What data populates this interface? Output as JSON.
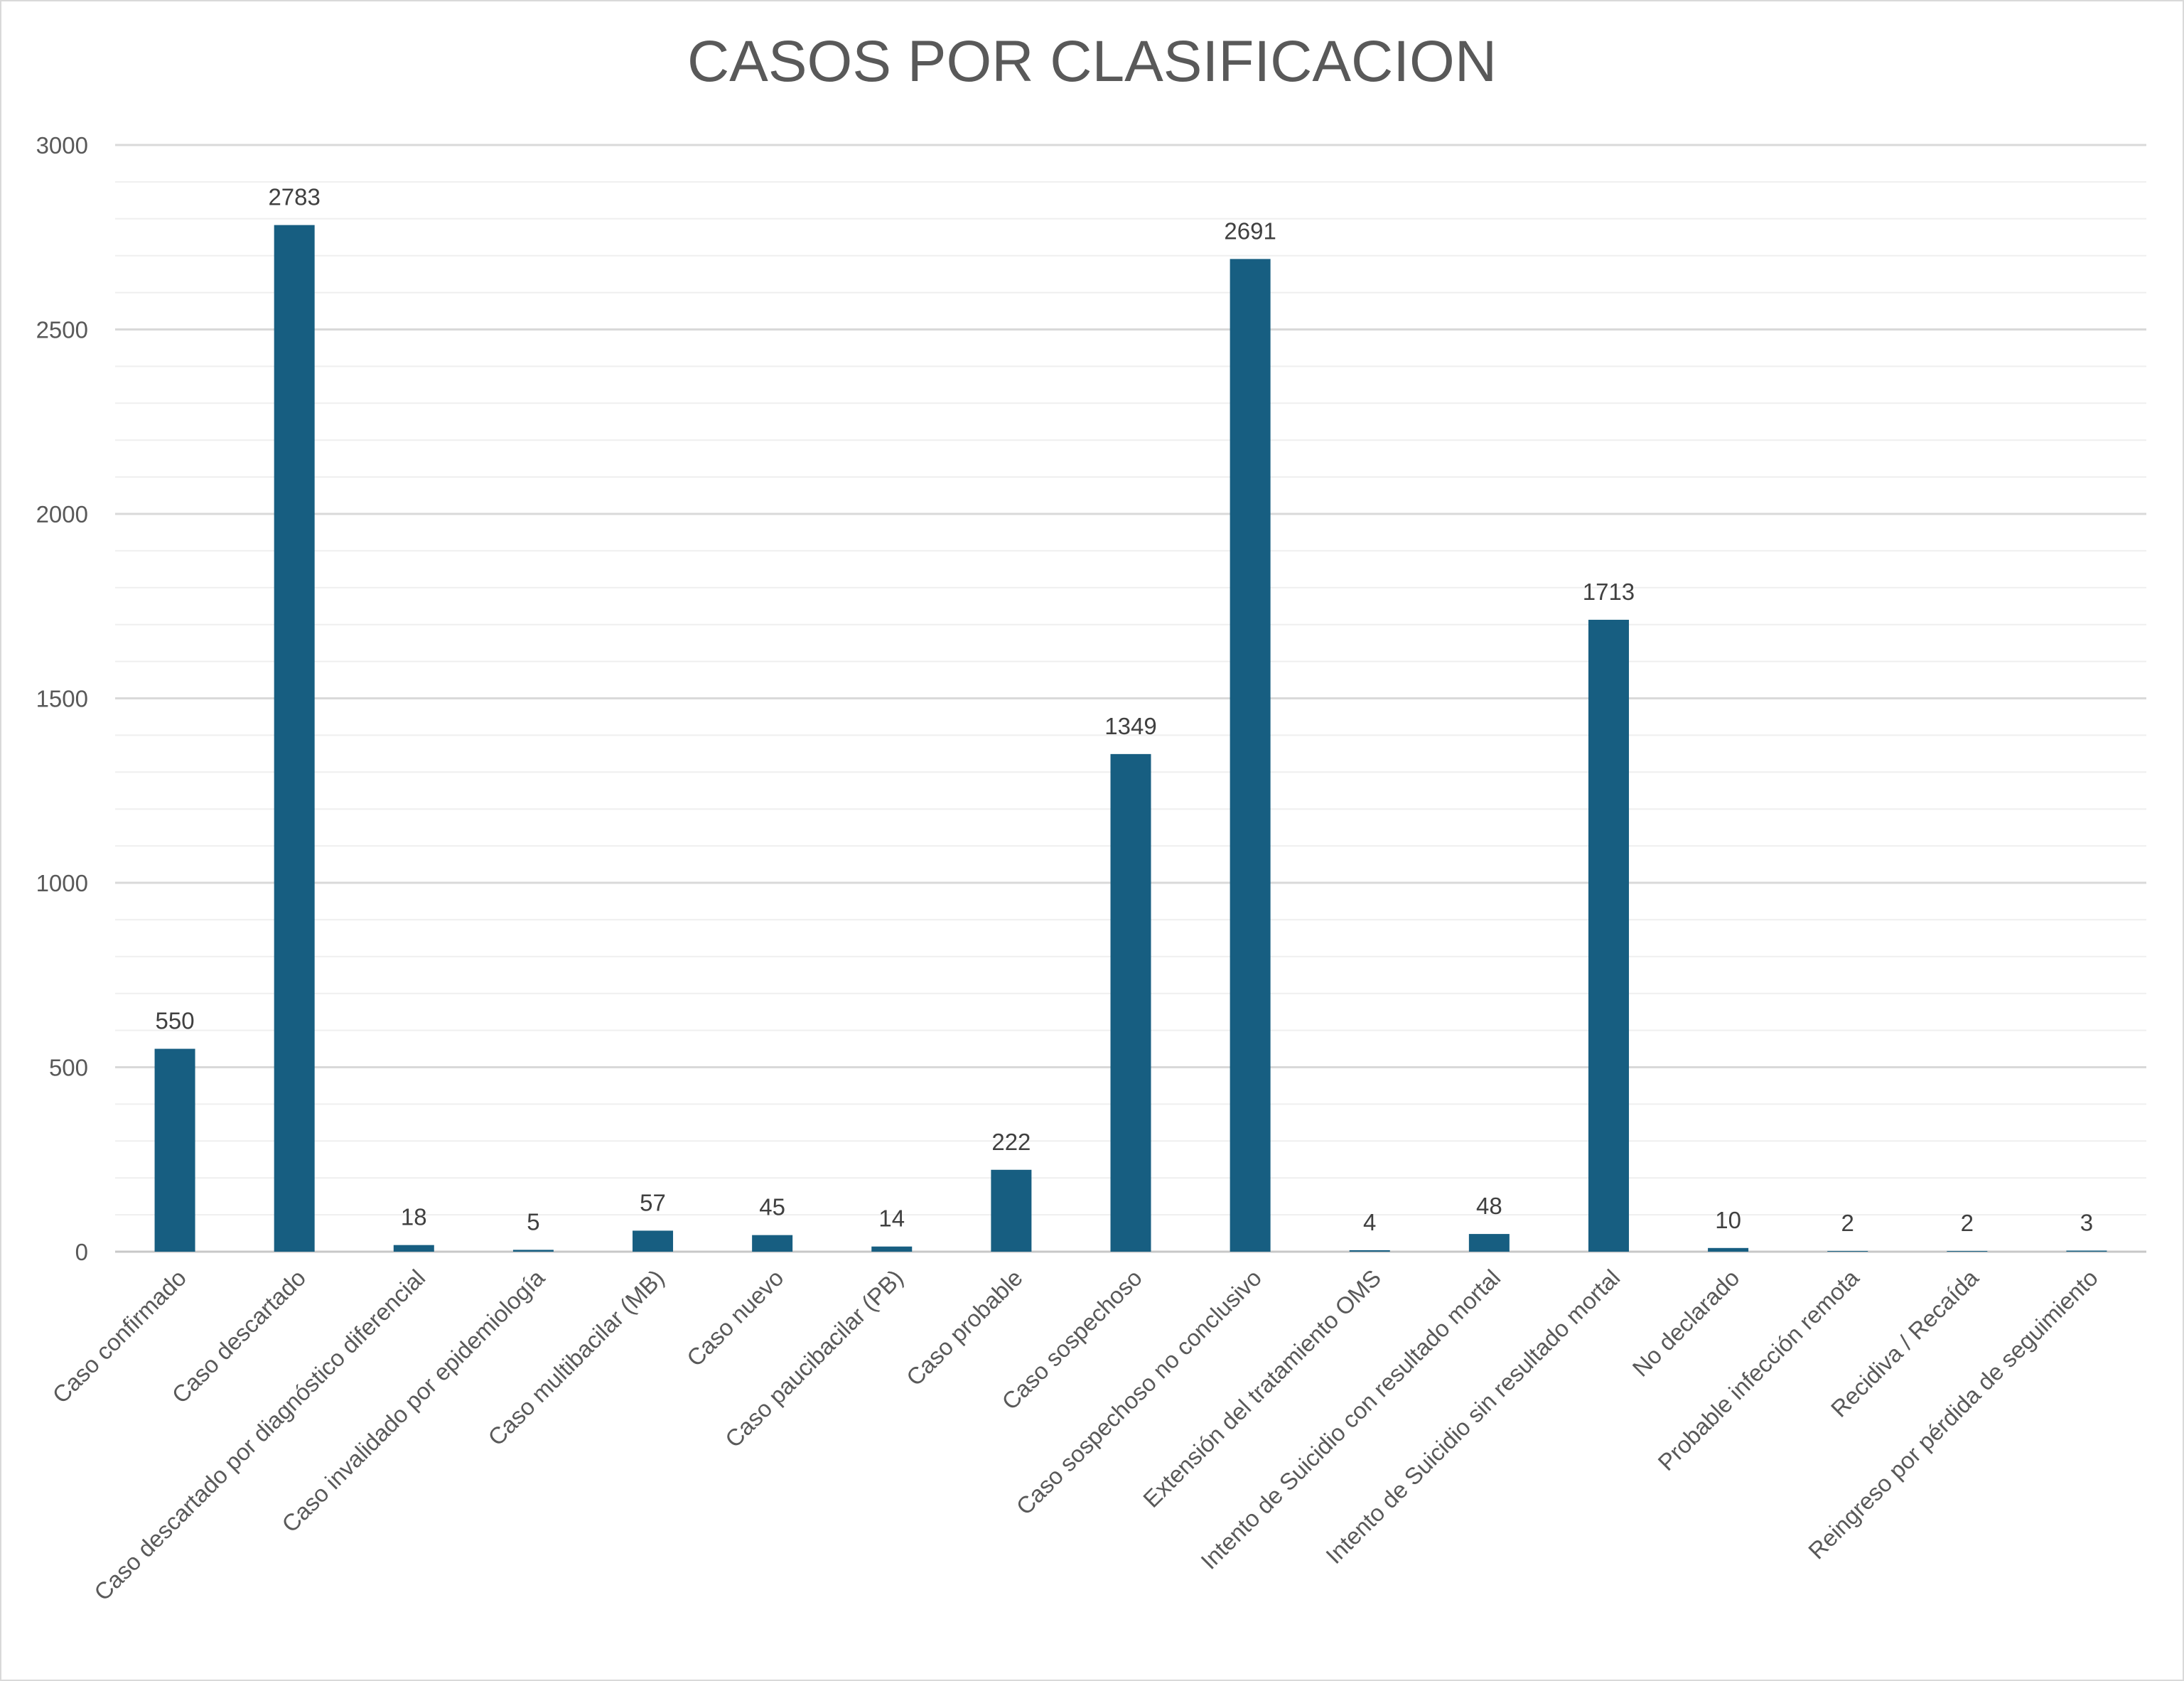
{
  "chart_data": {
    "type": "bar",
    "title": "CASOS POR CLASIFICACION",
    "xlabel": "",
    "ylabel": "",
    "ylim": [
      0,
      3000
    ],
    "yticks": [
      0,
      500,
      1000,
      1500,
      2000,
      2500,
      3000
    ],
    "minor_grid_step": 100,
    "grid": true,
    "legend": "none",
    "bar_color": "#175E81",
    "categories": [
      "Caso confirmado",
      "Caso descartado",
      "Caso descartado por diagnóstico diferencial",
      "Caso invalidado por epidemiología",
      "Caso multibacilar (MB)",
      "Caso nuevo",
      "Caso paucibacilar (PB)",
      "Caso probable",
      "Caso sospechoso",
      "Caso sospechoso no conclusivo",
      "Extensión del tratamiento OMS",
      "Intento de Suicidio con resultado mortal",
      "Intento de Suicidio sin resultado mortal",
      "No declarado",
      "Probable infección remota",
      "Recidiva / Recaída",
      "Reingreso por pérdida de seguimiento"
    ],
    "values": [
      550,
      2783,
      18,
      5,
      57,
      45,
      14,
      222,
      1349,
      2691,
      4,
      48,
      1713,
      10,
      2,
      2,
      3
    ]
  }
}
